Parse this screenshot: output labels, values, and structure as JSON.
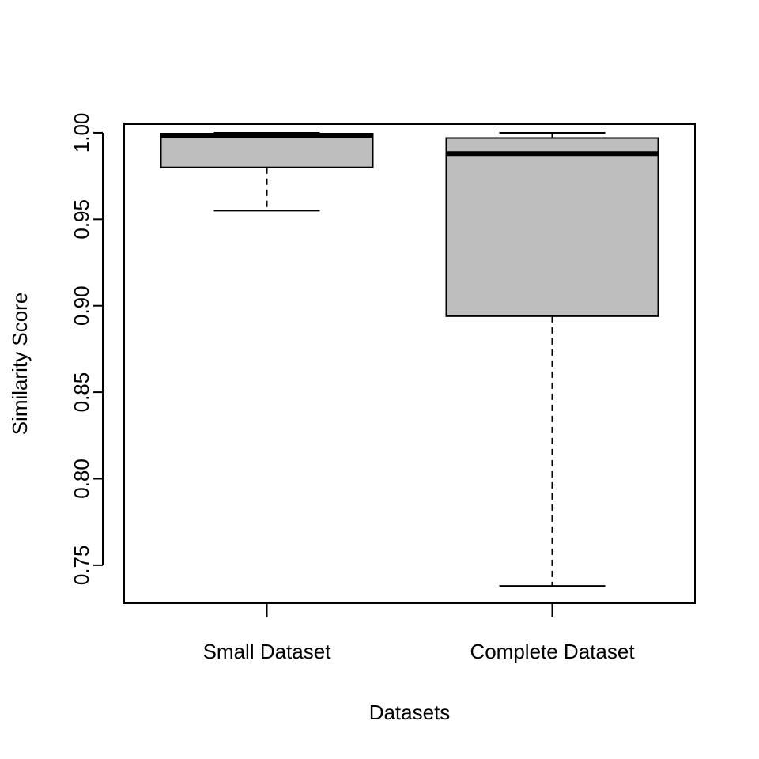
{
  "chart_data": {
    "type": "box",
    "title": "",
    "xlabel": "Datasets",
    "ylabel": "Similarity Score",
    "ylim": [
      0.728,
      1.005
    ],
    "yticks": [
      "0.75",
      "0.80",
      "0.85",
      "0.90",
      "0.95",
      "1.00"
    ],
    "categories": [
      "Small Dataset",
      "Complete Dataset"
    ],
    "boxes": [
      {
        "name": "Small Dataset",
        "min": 0.955,
        "q1": 0.98,
        "median": 0.9985,
        "q3": 0.9995,
        "max": 1.0
      },
      {
        "name": "Complete Dataset",
        "min": 0.738,
        "q1": 0.894,
        "median": 0.988,
        "q3": 0.997,
        "max": 1.0
      }
    ],
    "box_color": "#bebebe",
    "grid": false
  }
}
